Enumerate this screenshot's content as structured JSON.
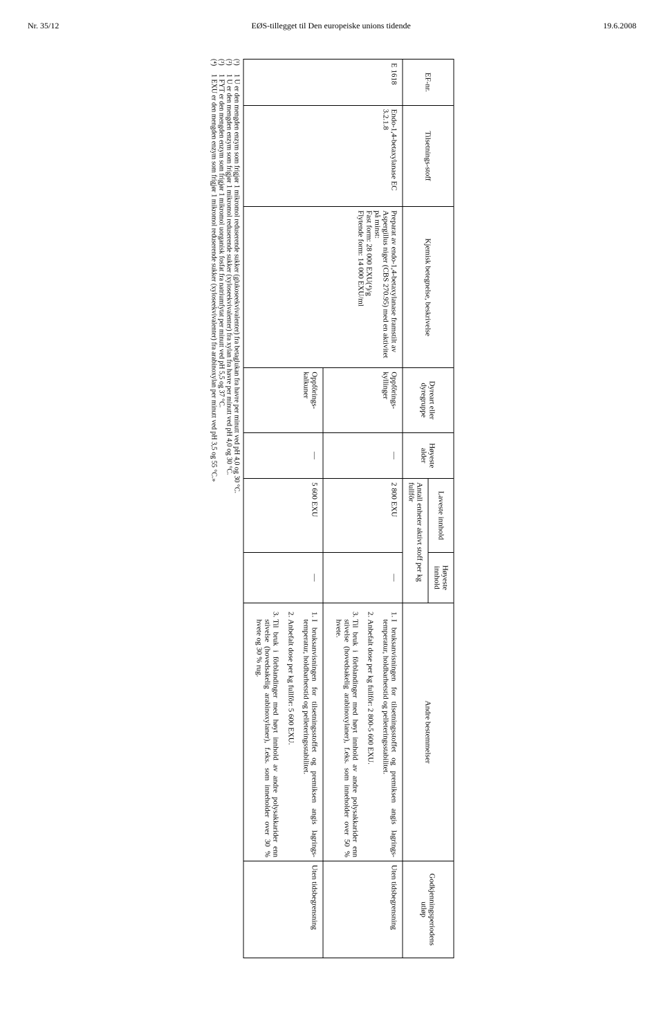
{
  "header": {
    "left": "Nr. 35/12",
    "center": "EØS-tillegget til Den europeiske unions tidende",
    "right": "19.6.2008"
  },
  "table": {
    "headers": {
      "efnr": "EF-nr.",
      "tilsetning": "Tilsetnings-stoff",
      "kjemisk": "Kjemisk betegnelse, beskrivelse",
      "dyreart": "Dyreart eller dyregruppe",
      "hoyeste_alder": "Høyeste alder",
      "laveste": "Laveste innhold",
      "hoyeste_innhold": "Høyeste innhold",
      "andre": "Andre bestemmelser",
      "godkj": "Godkjenningsperiodens utløp",
      "subheader_units": "Antall enheter aktivt stoff per kg fullfôr"
    },
    "row1": {
      "efnr": "E 1618",
      "tilsetning": "Endo-1,4-betaxylanase EC 3.2.1.8",
      "kjemisk_line1": "Preparat av endo-1,4-betaxylanase framstilt av Aspergillus niger (CBS 270.95) med en aktivitet på minst:",
      "kjemisk_line2": "Fast form: 28 000 EXU(⁴)/g",
      "kjemisk_line3": "Flytende form: 14 000 EXU/ml",
      "dyreart": "Oppfôrings-kyllinger",
      "hoyeste_alder": "—",
      "laveste": "2 800 EXU",
      "hoyeste_innhold": "—",
      "andre_li1": "I bruksanvisningen for tilset­nings­stoffet og premiksen angis lagrings­temperatur, holdbar­hetstid og pelleterings­stabilitet.",
      "andre_li2": "Anbefalt dose per kg fullfôr: 2 800-5 600 EXU.",
      "andre_li3": "Til bruk i fôrblandinger med høyt innhold av andre polysak­karider enn stivelse (hovedsake­lig arabinoxylaner), f.eks. som inneholder over 50 % hvete.",
      "godkj": "Uten tidsbegrensning"
    },
    "row2": {
      "dyreart": "Oppfôrings-kalkuner",
      "hoyeste_alder": "—",
      "laveste": "5 600 EXU",
      "hoyeste_innhold": "—",
      "andre_li1": "I bruksanvisningen for tilset­nings­stoffet og premiksen angis lagrings­temperatur, holdbar­hetstid og pelleterings­stabilitet.",
      "andre_li2": "Anbefalt dose per kg fullfôr: 5 600 EXU.",
      "andre_li3": "Til bruk i fôrblandinger med høyt innhold av andre polysak­karider enn stivelse (hovedsake­lig arabinoxylaner), f.eks. som inneholder over 30 % hvete og 30 % rug.",
      "godkj": "Uten tidsbegrensning"
    }
  },
  "footnotes": {
    "fn1": {
      "num": "(¹)",
      "text": "1 U er den mengden enzym som frigjør 1 mikromol reduserende sukker (glukoseekvivalenter) fra betaglukan fra havre per minutt ved pH 4,0 og 30 °C."
    },
    "fn2": {
      "num": "(²)",
      "text": "1 U er den mengden enzym som frigjør 1 mikromol reduserende sukker (xyloseekvivalenter) fra xylan fra havre per minutt ved pH 4,0 og 30 °C."
    },
    "fn3": {
      "num": "(³)",
      "text": "1 FYT er den mengden enzym som frigjør 1 mikromol uorganisk fosfat fra natriumfytat per minutt ved pH 5,5 og 37 °C."
    },
    "fn4": {
      "num": "(⁴)",
      "text": "1 EXU er den mengden enzym som frigjør 1 mikromol reduserende sukker (xyloseekvivalenter) fra arabinoxylan per minutt ved pH 3,5 og 55 °C.»"
    }
  }
}
